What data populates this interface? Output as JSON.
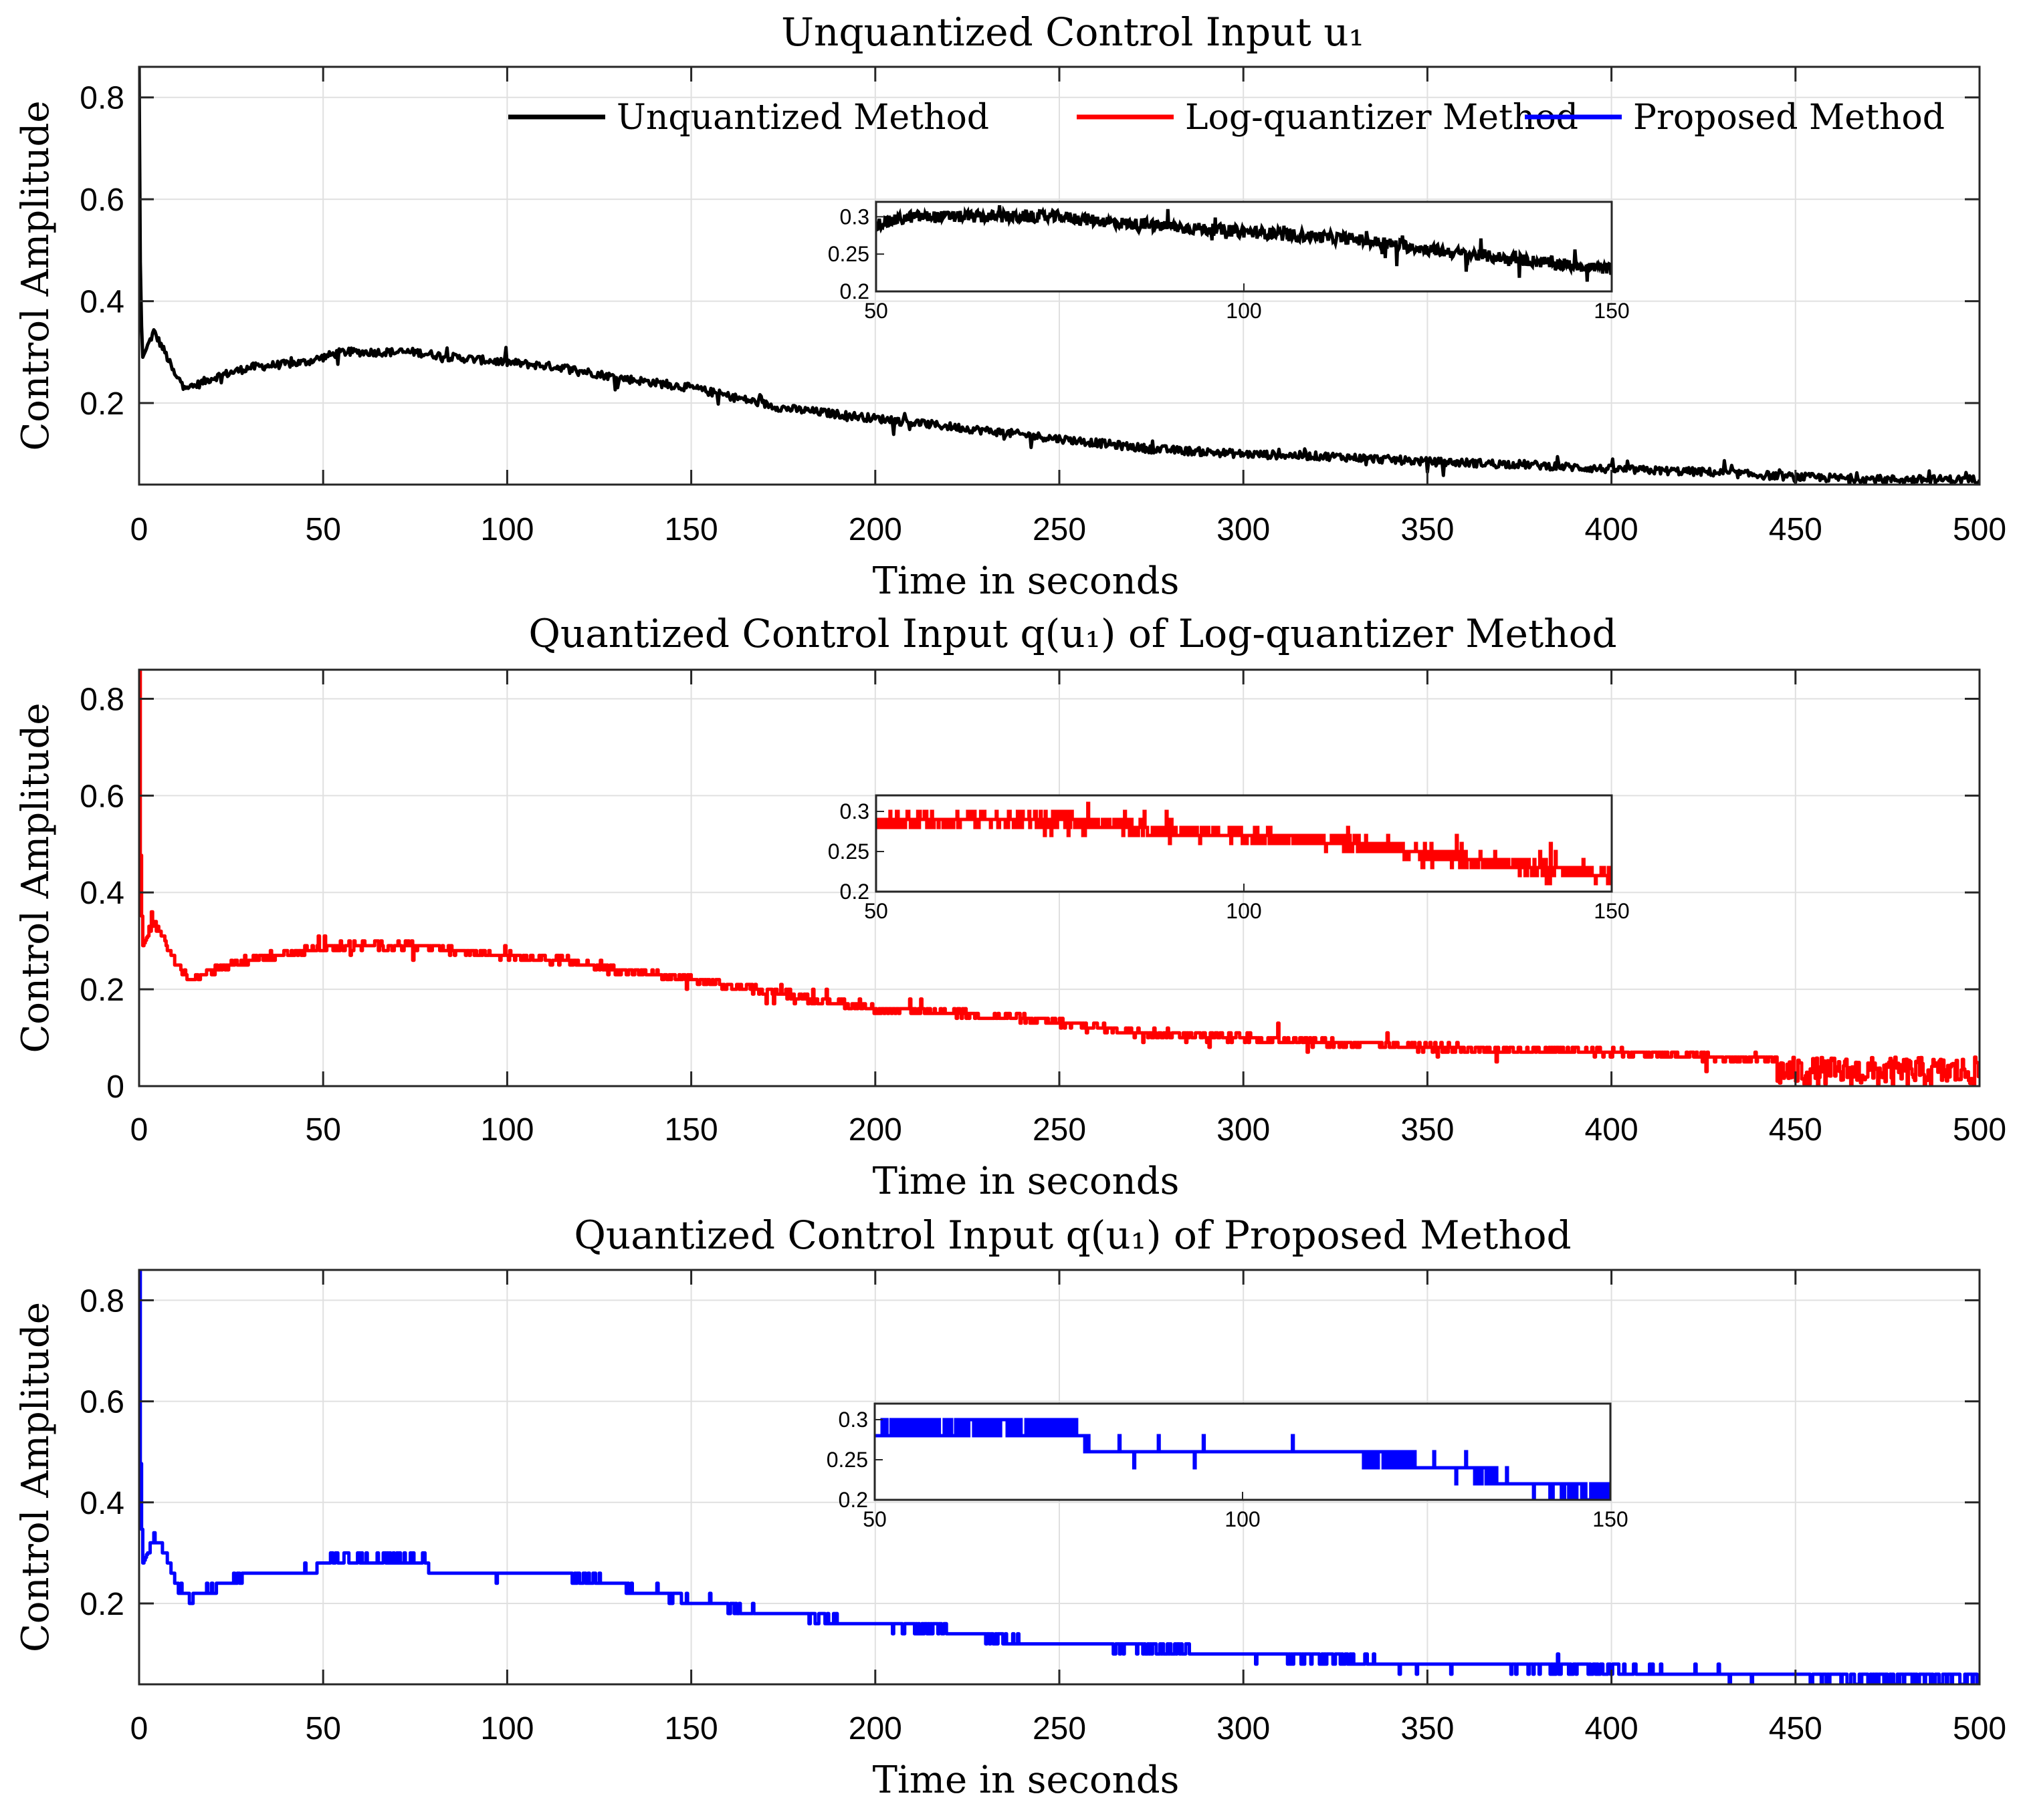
{
  "legend": {
    "placement": "top-right",
    "entries": [
      {
        "label": "Unquantized Method",
        "color": "#000000"
      },
      {
        "label": "Log-quantizer Method",
        "color": "#ff0000"
      },
      {
        "label": "Proposed Method",
        "color": "#0000ff"
      }
    ]
  },
  "chart_data": [
    {
      "type": "line",
      "title": "Unquantized Control Input u₁",
      "xlabel": "Time in seconds",
      "ylabel": "Control Amplitude",
      "xlim": [
        0,
        500
      ],
      "ylim": [
        0.04,
        0.86
      ],
      "xticks": [
        "0",
        "50",
        "100",
        "150",
        "200",
        "250",
        "300",
        "350",
        "400",
        "450",
        "500"
      ],
      "xtick_values": [
        0,
        50,
        100,
        150,
        200,
        250,
        300,
        350,
        400,
        450,
        500
      ],
      "yticks": [
        "0.2",
        "0.4",
        "0.6",
        "0.8"
      ],
      "ytick_values": [
        0.2,
        0.4,
        0.6,
        0.8
      ],
      "grid": true,
      "series": [
        {
          "name": "Unquantized Method",
          "color": "#000000",
          "noise": 0.008,
          "quantized": false,
          "x": [
            0,
            0.4,
            1,
            4,
            7,
            10,
            14,
            20,
            30,
            45,
            55,
            65,
            75,
            85,
            100,
            115,
            130,
            150,
            175,
            200,
            225,
            250,
            275,
            300,
            325,
            350,
            375,
            400,
            425,
            450,
            475,
            500
          ],
          "y": [
            0.86,
            0.4,
            0.29,
            0.34,
            0.3,
            0.25,
            0.23,
            0.25,
            0.27,
            0.28,
            0.3,
            0.3,
            0.3,
            0.29,
            0.28,
            0.27,
            0.25,
            0.23,
            0.19,
            0.17,
            0.15,
            0.13,
            0.11,
            0.1,
            0.095,
            0.085,
            0.08,
            0.07,
            0.065,
            0.055,
            0.05,
            0.05
          ]
        }
      ],
      "inset": {
        "xlim": [
          50,
          150
        ],
        "ylim": [
          0.2,
          0.32
        ],
        "xticks": [
          "50",
          "100",
          "150"
        ],
        "xtick_values": [
          50,
          100,
          150
        ],
        "yticks": [
          "0.2",
          "0.25",
          "0.3"
        ],
        "ytick_values": [
          0.2,
          0.25,
          0.3
        ]
      }
    },
    {
      "type": "line",
      "title": "Quantized Control Input q(u₁) of Log-quantizer Method",
      "xlabel": "Time in seconds",
      "ylabel": "Control Amplitude",
      "xlim": [
        0,
        500
      ],
      "ylim": [
        0,
        0.86
      ],
      "xticks": [
        "0",
        "50",
        "100",
        "150",
        "200",
        "250",
        "300",
        "350",
        "400",
        "450",
        "500"
      ],
      "xtick_values": [
        0,
        50,
        100,
        150,
        200,
        250,
        300,
        350,
        400,
        450,
        500
      ],
      "yticks": [
        "0",
        "0.2",
        "0.4",
        "0.6",
        "0.8"
      ],
      "ytick_values": [
        0,
        0.2,
        0.4,
        0.6,
        0.8
      ],
      "grid": true,
      "series": [
        {
          "name": "Log-quantizer Method",
          "color": "#ff0000",
          "noise": 0.008,
          "quantized": true,
          "step": 0.01,
          "dense_band_from": 445,
          "dense_band_range": [
            0.0,
            0.06
          ],
          "x": [
            0,
            0.4,
            1,
            4,
            7,
            10,
            14,
            20,
            30,
            45,
            55,
            65,
            75,
            85,
            100,
            115,
            130,
            150,
            175,
            200,
            225,
            250,
            275,
            300,
            325,
            350,
            375,
            400,
            425,
            445,
            475,
            500
          ],
          "y": [
            0.86,
            0.4,
            0.29,
            0.34,
            0.3,
            0.25,
            0.22,
            0.24,
            0.26,
            0.28,
            0.29,
            0.29,
            0.29,
            0.28,
            0.27,
            0.26,
            0.24,
            0.22,
            0.19,
            0.16,
            0.15,
            0.13,
            0.11,
            0.1,
            0.09,
            0.08,
            0.075,
            0.07,
            0.06,
            0.055,
            0.03,
            0.03
          ]
        }
      ],
      "inset": {
        "xlim": [
          50,
          150
        ],
        "ylim": [
          0.2,
          0.32
        ],
        "xticks": [
          "50",
          "100",
          "150"
        ],
        "xtick_values": [
          50,
          100,
          150
        ],
        "yticks": [
          "0.2",
          "0.25",
          "0.3"
        ],
        "ytick_values": [
          0.2,
          0.25,
          0.3
        ]
      }
    },
    {
      "type": "line",
      "title": "Quantized Control Input q(u₁) of Proposed Method",
      "xlabel": "Time in seconds",
      "ylabel": "Control Amplitude",
      "xlim": [
        0,
        500
      ],
      "ylim": [
        0.04,
        0.86
      ],
      "xticks": [
        "0",
        "50",
        "100",
        "150",
        "200",
        "250",
        "300",
        "350",
        "400",
        "450",
        "500"
      ],
      "xtick_values": [
        0,
        50,
        100,
        150,
        200,
        250,
        300,
        350,
        400,
        450,
        500
      ],
      "yticks": [
        "0.2",
        "0.4",
        "0.6",
        "0.8"
      ],
      "ytick_values": [
        0.2,
        0.4,
        0.6,
        0.8
      ],
      "grid": true,
      "series": [
        {
          "name": "Proposed Method",
          "color": "#0000ff",
          "noise": 0.006,
          "quantized": true,
          "step": 0.02,
          "x": [
            0,
            0.4,
            1,
            4,
            7,
            10,
            14,
            20,
            30,
            45,
            52,
            65,
            77,
            80,
            100,
            112,
            130,
            137,
            155,
            175,
            195,
            215,
            235,
            255,
            275,
            300,
            325,
            350,
            375,
            400,
            425,
            450,
            475,
            500
          ],
          "y": [
            0.86,
            0.4,
            0.28,
            0.33,
            0.3,
            0.24,
            0.21,
            0.23,
            0.26,
            0.26,
            0.29,
            0.29,
            0.29,
            0.26,
            0.26,
            0.26,
            0.24,
            0.22,
            0.2,
            0.18,
            0.16,
            0.15,
            0.13,
            0.12,
            0.11,
            0.1,
            0.09,
            0.08,
            0.075,
            0.07,
            0.06,
            0.055,
            0.05,
            0.05
          ]
        }
      ],
      "inset": {
        "xlim": [
          50,
          150
        ],
        "ylim": [
          0.2,
          0.32
        ],
        "xticks": [
          "50",
          "100",
          "150"
        ],
        "xtick_values": [
          50,
          100,
          150
        ],
        "yticks": [
          "0.2",
          "0.25",
          "0.3"
        ],
        "ytick_values": [
          0.2,
          0.25,
          0.3
        ]
      }
    }
  ]
}
